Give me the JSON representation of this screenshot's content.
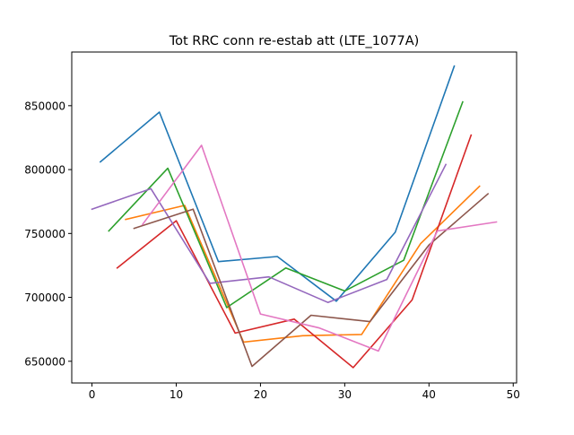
{
  "chart_data": {
    "type": "line",
    "title": "Tot RRC conn re-estab att (LTE_1077A)",
    "xlabel": "",
    "ylabel": "",
    "xlim": [
      -2.4,
      50.4
    ],
    "ylim": [
      633000,
      892000
    ],
    "xticks": [
      0,
      10,
      20,
      30,
      40,
      50
    ],
    "yticks": [
      650000,
      700000,
      750000,
      800000,
      850000
    ],
    "xtick_labels": [
      "0",
      "10",
      "20",
      "30",
      "40",
      "50"
    ],
    "ytick_labels": [
      "650000",
      "700000",
      "750000",
      "800000",
      "850000"
    ],
    "grid": false,
    "legend": "none",
    "series": [
      {
        "color": "#1f77b4",
        "x": [
          1,
          8,
          15,
          22,
          29,
          36,
          43
        ],
        "y": [
          806000,
          845000,
          728000,
          732000,
          697000,
          751000,
          881000
        ]
      },
      {
        "color": "#ff7f0e",
        "x": [
          4,
          11,
          18,
          25,
          32,
          39,
          46
        ],
        "y": [
          761000,
          772000,
          665000,
          670000,
          671000,
          742000,
          787000
        ]
      },
      {
        "color": "#2ca02c",
        "x": [
          2,
          9,
          16,
          23,
          30,
          37,
          44
        ],
        "y": [
          752000,
          801000,
          692000,
          723000,
          705000,
          729000,
          853000
        ]
      },
      {
        "color": "#d62728",
        "x": [
          3,
          10,
          17,
          24,
          31,
          38,
          45
        ],
        "y": [
          723000,
          760000,
          672000,
          683000,
          645000,
          698000,
          827000
        ]
      },
      {
        "color": "#9467bd",
        "x": [
          0,
          7,
          14,
          21,
          28,
          35,
          42
        ],
        "y": [
          769000,
          785000,
          711000,
          716000,
          696000,
          714000,
          804000
        ]
      },
      {
        "color": "#8c564b",
        "x": [
          5,
          12,
          19,
          26,
          33,
          40,
          47
        ],
        "y": [
          754000,
          769000,
          646000,
          686000,
          681000,
          741000,
          781000
        ]
      },
      {
        "color": "#e377c2",
        "x": [
          6,
          13,
          20,
          27,
          34,
          41,
          48
        ],
        "y": [
          757000,
          819000,
          687000,
          676000,
          658000,
          752000,
          759000
        ]
      }
    ]
  }
}
